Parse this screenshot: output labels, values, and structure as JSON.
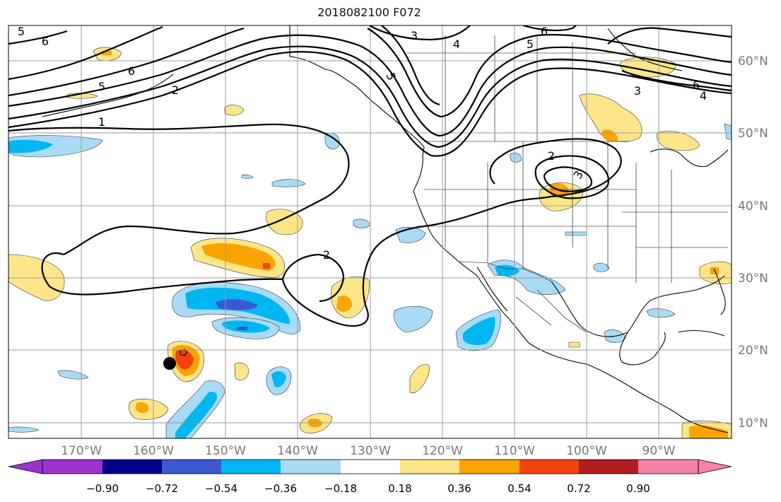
{
  "title": "2018082100 F072",
  "map": {
    "lon_range": [
      -180,
      -80
    ],
    "lat_range": [
      8,
      65
    ],
    "lon_ticks": [
      "170°W",
      "160°W",
      "150°W",
      "140°W",
      "130°W",
      "120°W",
      "110°W",
      "100°W",
      "90°W"
    ],
    "lat_ticks": [
      "10°N",
      "20°N",
      "30°N",
      "40°N",
      "50°N",
      "60°N"
    ],
    "grid": true
  },
  "contour_labels": [
    "5",
    "6",
    "3",
    "4",
    "6",
    "5",
    "6",
    "5",
    "2",
    "5",
    "1",
    "2",
    "2",
    "3",
    "3",
    "6",
    "4"
  ],
  "colorbar": {
    "ticks": [
      "−0.90",
      "−0.72",
      "−0.54",
      "−0.36",
      "−0.18",
      "0.18",
      "0.36",
      "0.54",
      "0.72",
      "0.90"
    ],
    "colors": [
      "#9c33cc",
      "#000088",
      "#3a59d2",
      "#00b6f0",
      "#a9dbf6",
      "#ffffff",
      "#fde68a",
      "#f9a400",
      "#f2420e",
      "#b11d21",
      "#f683a6"
    ]
  }
}
